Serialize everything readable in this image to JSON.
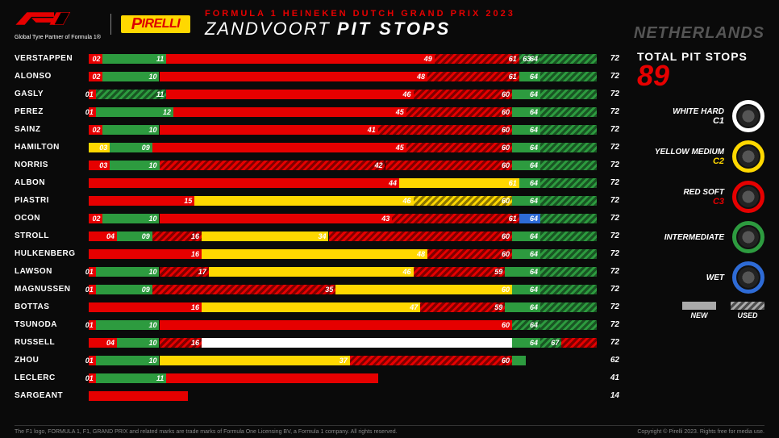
{
  "header": {
    "tagline": "Global Tyre Partner of Formula 1®",
    "super_title": "FORMULA 1 HEINEKEN DUTCH GRAND PRIX 2023",
    "circuit": "ZANDVOORT",
    "subject": "PIT STOPS",
    "country": "NETHERLANDS",
    "pirelli_text": "IRELLI"
  },
  "totals": {
    "label": "TOTAL PIT STOPS",
    "count": "89"
  },
  "colors": {
    "soft": "#e60000",
    "medium": "#ffd800",
    "hard": "#ffffff",
    "inter": "#2d9b3f",
    "wet": "#2e6bd6",
    "bg": "#0a0a0a"
  },
  "compounds": [
    {
      "label1": "WHITE HARD",
      "compound": "C1",
      "color": "#ffffff",
      "label_color": "#ffffff"
    },
    {
      "label1": "YELLOW MEDIUM",
      "compound": "C2",
      "color": "#ffd800",
      "label_color": "#ffd800"
    },
    {
      "label1": "RED SOFT",
      "compound": "C3",
      "color": "#e60000",
      "label_color": "#e60000"
    },
    {
      "label1": "INTERMEDIATE",
      "compound": "",
      "color": "#2d9b3f",
      "label_color": "#2d9b3f"
    },
    {
      "label1": "WET",
      "compound": "",
      "color": "#2e6bd6",
      "label_color": "#2e6bd6"
    }
  ],
  "legend": {
    "new": "NEW",
    "used": "USED"
  },
  "chart": {
    "max_laps": 72,
    "drivers": [
      {
        "name": "VERSTAPPEN",
        "end": 72,
        "stints": [
          {
            "to": 2,
            "c": "soft"
          },
          {
            "lbl": "02",
            "to": 11,
            "c": "inter"
          },
          {
            "lbl": "11",
            "to": 49,
            "c": "soft"
          },
          {
            "lbl": "49",
            "to": 61,
            "c": "soft",
            "used": true
          },
          {
            "lbl": "61",
            "to": 63,
            "c": "inter",
            "used": true
          },
          {
            "lbl": "63",
            "to": 64,
            "c": "inter",
            "used": true
          },
          {
            "lbl": "64",
            "to": 72,
            "c": "inter",
            "used": true
          }
        ]
      },
      {
        "name": "ALONSO",
        "end": 72,
        "stints": [
          {
            "to": 2,
            "c": "soft"
          },
          {
            "lbl": "02",
            "to": 10,
            "c": "inter"
          },
          {
            "lbl": "10",
            "to": 48,
            "c": "soft"
          },
          {
            "lbl": "48",
            "to": 61,
            "c": "soft",
            "used": true
          },
          {
            "lbl": "61",
            "to": 64,
            "c": "inter"
          },
          {
            "lbl": "64",
            "to": 72,
            "c": "inter",
            "used": true
          }
        ]
      },
      {
        "name": "GASLY",
        "end": 72,
        "stints": [
          {
            "to": 1,
            "c": "soft"
          },
          {
            "lbl": "01",
            "to": 11,
            "c": "inter",
            "used": true
          },
          {
            "lbl": "11",
            "to": 46,
            "c": "soft"
          },
          {
            "lbl": "46",
            "to": 60,
            "c": "soft",
            "used": true
          },
          {
            "lbl": "60",
            "to": 64,
            "c": "inter"
          },
          {
            "lbl": "64",
            "to": 72,
            "c": "inter",
            "used": true
          }
        ]
      },
      {
        "name": "PEREZ",
        "end": 72,
        "stints": [
          {
            "to": 1,
            "c": "soft"
          },
          {
            "lbl": "01",
            "to": 12,
            "c": "inter"
          },
          {
            "lbl": "12",
            "to": 45,
            "c": "soft"
          },
          {
            "lbl": "45",
            "to": 60,
            "c": "soft",
            "used": true
          },
          {
            "lbl": "60",
            "to": 64,
            "c": "inter"
          },
          {
            "lbl": "64",
            "to": 72,
            "c": "inter",
            "used": true
          }
        ]
      },
      {
        "name": "SAINZ",
        "end": 72,
        "stints": [
          {
            "to": 2,
            "c": "soft"
          },
          {
            "lbl": "02",
            "to": 10,
            "c": "inter"
          },
          {
            "lbl": "10",
            "to": 41,
            "c": "soft"
          },
          {
            "lbl": "41",
            "to": 60,
            "c": "soft",
            "used": true
          },
          {
            "lbl": "60",
            "to": 64,
            "c": "inter"
          },
          {
            "lbl": "64",
            "to": 72,
            "c": "inter",
            "used": true
          }
        ]
      },
      {
        "name": "HAMILTON",
        "end": 72,
        "stints": [
          {
            "to": 3,
            "c": "medium"
          },
          {
            "lbl": "03",
            "to": 9,
            "c": "inter"
          },
          {
            "lbl": "09",
            "to": 45,
            "c": "soft"
          },
          {
            "lbl": "45",
            "to": 60,
            "c": "soft",
            "used": true
          },
          {
            "lbl": "60",
            "to": 64,
            "c": "inter"
          },
          {
            "lbl": "64",
            "to": 72,
            "c": "inter",
            "used": true
          }
        ]
      },
      {
        "name": "NORRIS",
        "end": 72,
        "stints": [
          {
            "to": 3,
            "c": "soft"
          },
          {
            "lbl": "03",
            "to": 10,
            "c": "inter"
          },
          {
            "lbl": "10",
            "to": 42,
            "c": "soft",
            "used": true
          },
          {
            "lbl": "42",
            "to": 60,
            "c": "soft",
            "used": true
          },
          {
            "lbl": "60",
            "to": 64,
            "c": "inter"
          },
          {
            "lbl": "64",
            "to": 72,
            "c": "inter",
            "used": true
          }
        ]
      },
      {
        "name": "ALBON",
        "end": 72,
        "stints": [
          {
            "to": 44,
            "c": "soft"
          },
          {
            "lbl": "44",
            "to": 61,
            "c": "medium"
          },
          {
            "lbl": "61",
            "to": 64,
            "c": "inter"
          },
          {
            "lbl": "64",
            "to": 72,
            "c": "inter",
            "used": true
          }
        ]
      },
      {
        "name": "PIASTRI",
        "end": 72,
        "stints": [
          {
            "to": 15,
            "c": "soft"
          },
          {
            "lbl": "15",
            "to": 46,
            "c": "medium"
          },
          {
            "lbl": "46",
            "to": 60,
            "c": "medium",
            "used": true
          },
          {
            "lbl": "60",
            "to": 64,
            "c": "inter"
          },
          {
            "lbl": "64",
            "to": 72,
            "c": "inter",
            "used": true
          }
        ]
      },
      {
        "name": "OCON",
        "end": 72,
        "stints": [
          {
            "to": 2,
            "c": "soft"
          },
          {
            "lbl": "02",
            "to": 10,
            "c": "inter"
          },
          {
            "lbl": "10",
            "to": 43,
            "c": "soft"
          },
          {
            "lbl": "43",
            "to": 61,
            "c": "soft",
            "used": true
          },
          {
            "lbl": "61",
            "to": 64,
            "c": "wet"
          },
          {
            "lbl": "64",
            "to": 72,
            "c": "inter",
            "used": true
          }
        ]
      },
      {
        "name": "STROLL",
        "end": 72,
        "stints": [
          {
            "to": 4,
            "c": "soft"
          },
          {
            "lbl": "04",
            "to": 9,
            "c": "inter"
          },
          {
            "lbl": "09",
            "to": 16,
            "c": "soft",
            "used": true
          },
          {
            "lbl": "16",
            "to": 34,
            "c": "medium"
          },
          {
            "lbl": "34",
            "to": 60,
            "c": "soft",
            "used": true
          },
          {
            "lbl": "60",
            "to": 64,
            "c": "inter"
          },
          {
            "lbl": "64",
            "to": 72,
            "c": "inter",
            "used": true
          }
        ]
      },
      {
        "name": "HULKENBERG",
        "end": 72,
        "stints": [
          {
            "to": 16,
            "c": "soft"
          },
          {
            "lbl": "16",
            "to": 48,
            "c": "medium"
          },
          {
            "lbl": "48",
            "to": 60,
            "c": "soft",
            "used": true
          },
          {
            "lbl": "60",
            "to": 64,
            "c": "inter"
          },
          {
            "lbl": "64",
            "to": 72,
            "c": "inter",
            "used": true
          }
        ]
      },
      {
        "name": "LAWSON",
        "end": 72,
        "stints": [
          {
            "to": 1,
            "c": "soft"
          },
          {
            "lbl": "01",
            "to": 10,
            "c": "inter"
          },
          {
            "lbl": "10",
            "to": 17,
            "c": "soft",
            "used": true
          },
          {
            "lbl": "17",
            "to": 46,
            "c": "medium"
          },
          {
            "lbl": "46",
            "to": 59,
            "c": "soft",
            "used": true
          },
          {
            "lbl": "59",
            "to": 64,
            "c": "inter"
          },
          {
            "lbl": "64",
            "to": 72,
            "c": "inter",
            "used": true
          }
        ]
      },
      {
        "name": "MAGNUSSEN",
        "end": 72,
        "stints": [
          {
            "to": 1,
            "c": "soft"
          },
          {
            "lbl": "01",
            "to": 9,
            "c": "inter"
          },
          {
            "lbl": "09",
            "to": 35,
            "c": "soft",
            "used": true
          },
          {
            "lbl": "35",
            "to": 60,
            "c": "medium"
          },
          {
            "lbl": "60",
            "to": 64,
            "c": "inter"
          },
          {
            "lbl": "64",
            "to": 72,
            "c": "inter",
            "used": true
          }
        ]
      },
      {
        "name": "BOTTAS",
        "end": 72,
        "stints": [
          {
            "to": 16,
            "c": "soft"
          },
          {
            "lbl": "16",
            "to": 47,
            "c": "medium"
          },
          {
            "lbl": "47",
            "to": 59,
            "c": "soft",
            "used": true
          },
          {
            "lbl": "59",
            "to": 64,
            "c": "inter"
          },
          {
            "lbl": "64",
            "to": 72,
            "c": "inter",
            "used": true
          }
        ]
      },
      {
        "name": "TSUNODA",
        "end": 72,
        "stints": [
          {
            "to": 1,
            "c": "soft"
          },
          {
            "lbl": "01",
            "to": 10,
            "c": "inter"
          },
          {
            "lbl": "10",
            "to": 60,
            "c": "soft"
          },
          {
            "lbl": "60",
            "to": 64,
            "c": "inter",
            "used": true
          },
          {
            "lbl": "64",
            "to": 72,
            "c": "inter",
            "used": true
          }
        ]
      },
      {
        "name": "RUSSELL",
        "end": 72,
        "stints": [
          {
            "to": 4,
            "c": "soft"
          },
          {
            "lbl": "04",
            "to": 10,
            "c": "inter"
          },
          {
            "lbl": "10",
            "to": 16,
            "c": "soft",
            "used": true
          },
          {
            "lbl": "16",
            "to": 60,
            "c": "hard"
          },
          {
            "lbl": "60",
            "to": 64,
            "c": "inter"
          },
          {
            "lbl": "64",
            "to": 67,
            "c": "inter",
            "used": true
          },
          {
            "lbl": "67",
            "to": 72,
            "c": "soft",
            "used": true
          }
        ]
      },
      {
        "name": "ZHOU",
        "end": 62,
        "stints": [
          {
            "to": 1,
            "c": "soft"
          },
          {
            "lbl": "01",
            "to": 10,
            "c": "inter"
          },
          {
            "lbl": "10",
            "to": 37,
            "c": "medium"
          },
          {
            "lbl": "37",
            "to": 60,
            "c": "soft",
            "used": true
          },
          {
            "lbl": "60",
            "to": 62,
            "c": "inter"
          }
        ]
      },
      {
        "name": "LECLERC",
        "end": 41,
        "stints": [
          {
            "to": 1,
            "c": "soft"
          },
          {
            "lbl": "01",
            "to": 11,
            "c": "inter"
          },
          {
            "lbl": "11",
            "to": 41,
            "c": "soft"
          }
        ]
      },
      {
        "name": "SARGEANT",
        "end": 14,
        "stints": [
          {
            "to": 14,
            "c": "soft"
          }
        ]
      }
    ]
  },
  "footer": {
    "left": "The F1 logo, FORMULA 1, F1, GRAND PRIX and related marks are trade marks of Formula One Licensing BV, a Formula 1 company. All rights reserved.",
    "right": "Copyright © Pirelli 2023. Rights free for media use."
  }
}
